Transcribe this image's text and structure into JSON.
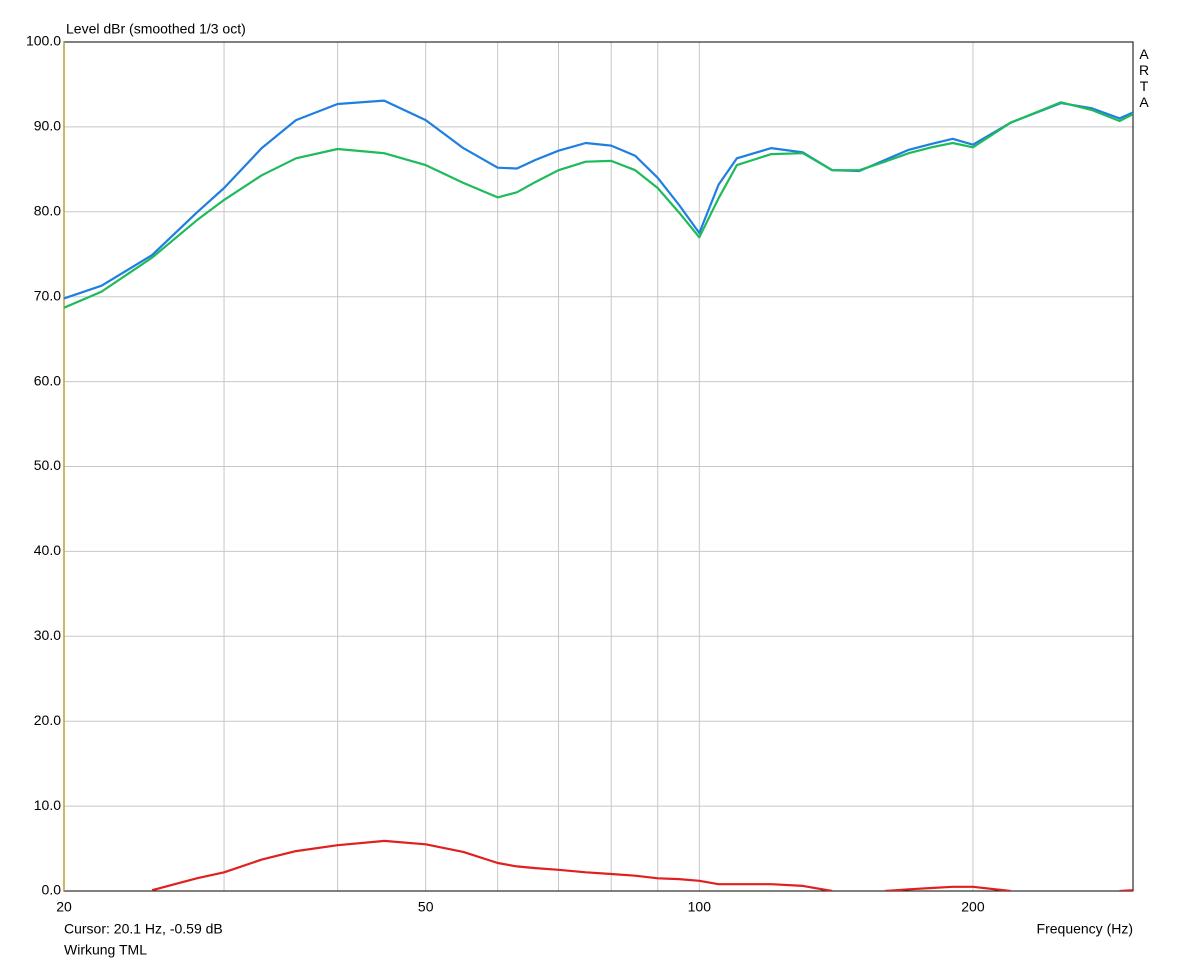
{
  "chart_data": {
    "type": "line",
    "title": "Level dBr (smoothed 1/3 oct)",
    "watermark": "ARTA",
    "cursor": "Cursor: 20.1 Hz, -0.59 dB",
    "caption": "Wirkung TML",
    "x_label": "Frequency (Hz)",
    "xscale": "log",
    "xlim": [
      20,
      300
    ],
    "xticks": [
      20,
      50,
      100,
      200
    ],
    "xgrid": [
      30,
      40,
      60,
      70,
      80,
      90
    ],
    "ylim": [
      0,
      100
    ],
    "yticks": [
      {
        "value": 0,
        "label": "0.0"
      },
      {
        "value": 10,
        "label": "10.0"
      },
      {
        "value": 20,
        "label": "20.0"
      },
      {
        "value": 30,
        "label": "30.0"
      },
      {
        "value": 40,
        "label": "40.0"
      },
      {
        "value": 50,
        "label": "50.0"
      },
      {
        "value": 60,
        "label": "60.0"
      },
      {
        "value": 70,
        "label": "70.0"
      },
      {
        "value": 80,
        "label": "80.0"
      },
      {
        "value": 90,
        "label": "90.0"
      },
      {
        "value": 100,
        "label": "100.0"
      }
    ],
    "grid": true,
    "x": [
      20,
      22,
      25,
      28,
      30,
      33,
      36,
      40,
      45,
      50,
      55,
      60,
      63,
      66,
      70,
      75,
      80,
      85,
      90,
      95,
      100,
      105,
      110,
      120,
      130,
      140,
      150,
      160,
      170,
      180,
      190,
      200,
      220,
      250,
      270,
      290,
      300
    ],
    "series": [
      {
        "color": "#1e7fe0",
        "values": [
          69.8,
          71.3,
          74.9,
          79.9,
          82.8,
          87.5,
          90.8,
          92.7,
          93.1,
          90.8,
          87.5,
          85.2,
          85.1,
          86.1,
          87.2,
          88.1,
          87.8,
          86.6,
          84.0,
          80.8,
          77.5,
          83.2,
          86.3,
          87.5,
          87.0,
          84.9,
          84.8,
          86.1,
          87.3,
          88.0,
          88.6,
          87.9,
          90.5,
          92.8,
          92.2,
          91.0,
          91.7
        ]
      },
      {
        "color": "#1fba5a",
        "values": [
          68.7,
          70.6,
          74.6,
          79.0,
          81.4,
          84.3,
          86.3,
          87.4,
          86.9,
          85.5,
          83.4,
          81.7,
          82.3,
          83.5,
          84.9,
          85.9,
          86.0,
          84.9,
          82.8,
          79.9,
          77.0,
          81.6,
          85.5,
          86.8,
          86.9,
          84.9,
          84.9,
          85.9,
          86.9,
          87.6,
          88.1,
          87.6,
          90.5,
          92.9,
          92.0,
          90.7,
          91.5
        ]
      },
      {
        "color": "#e0201e",
        "values": [
          null,
          null,
          0.1,
          1.5,
          2.2,
          3.7,
          4.7,
          5.4,
          5.9,
          5.5,
          4.6,
          3.3,
          2.9,
          2.7,
          2.5,
          2.2,
          2.0,
          1.8,
          1.5,
          1.4,
          1.2,
          0.8,
          0.8,
          0.8,
          0.6,
          0,
          null,
          0,
          0.2,
          0.35,
          0.5,
          0.5,
          0,
          null,
          null,
          0,
          0.1
        ]
      }
    ]
  }
}
